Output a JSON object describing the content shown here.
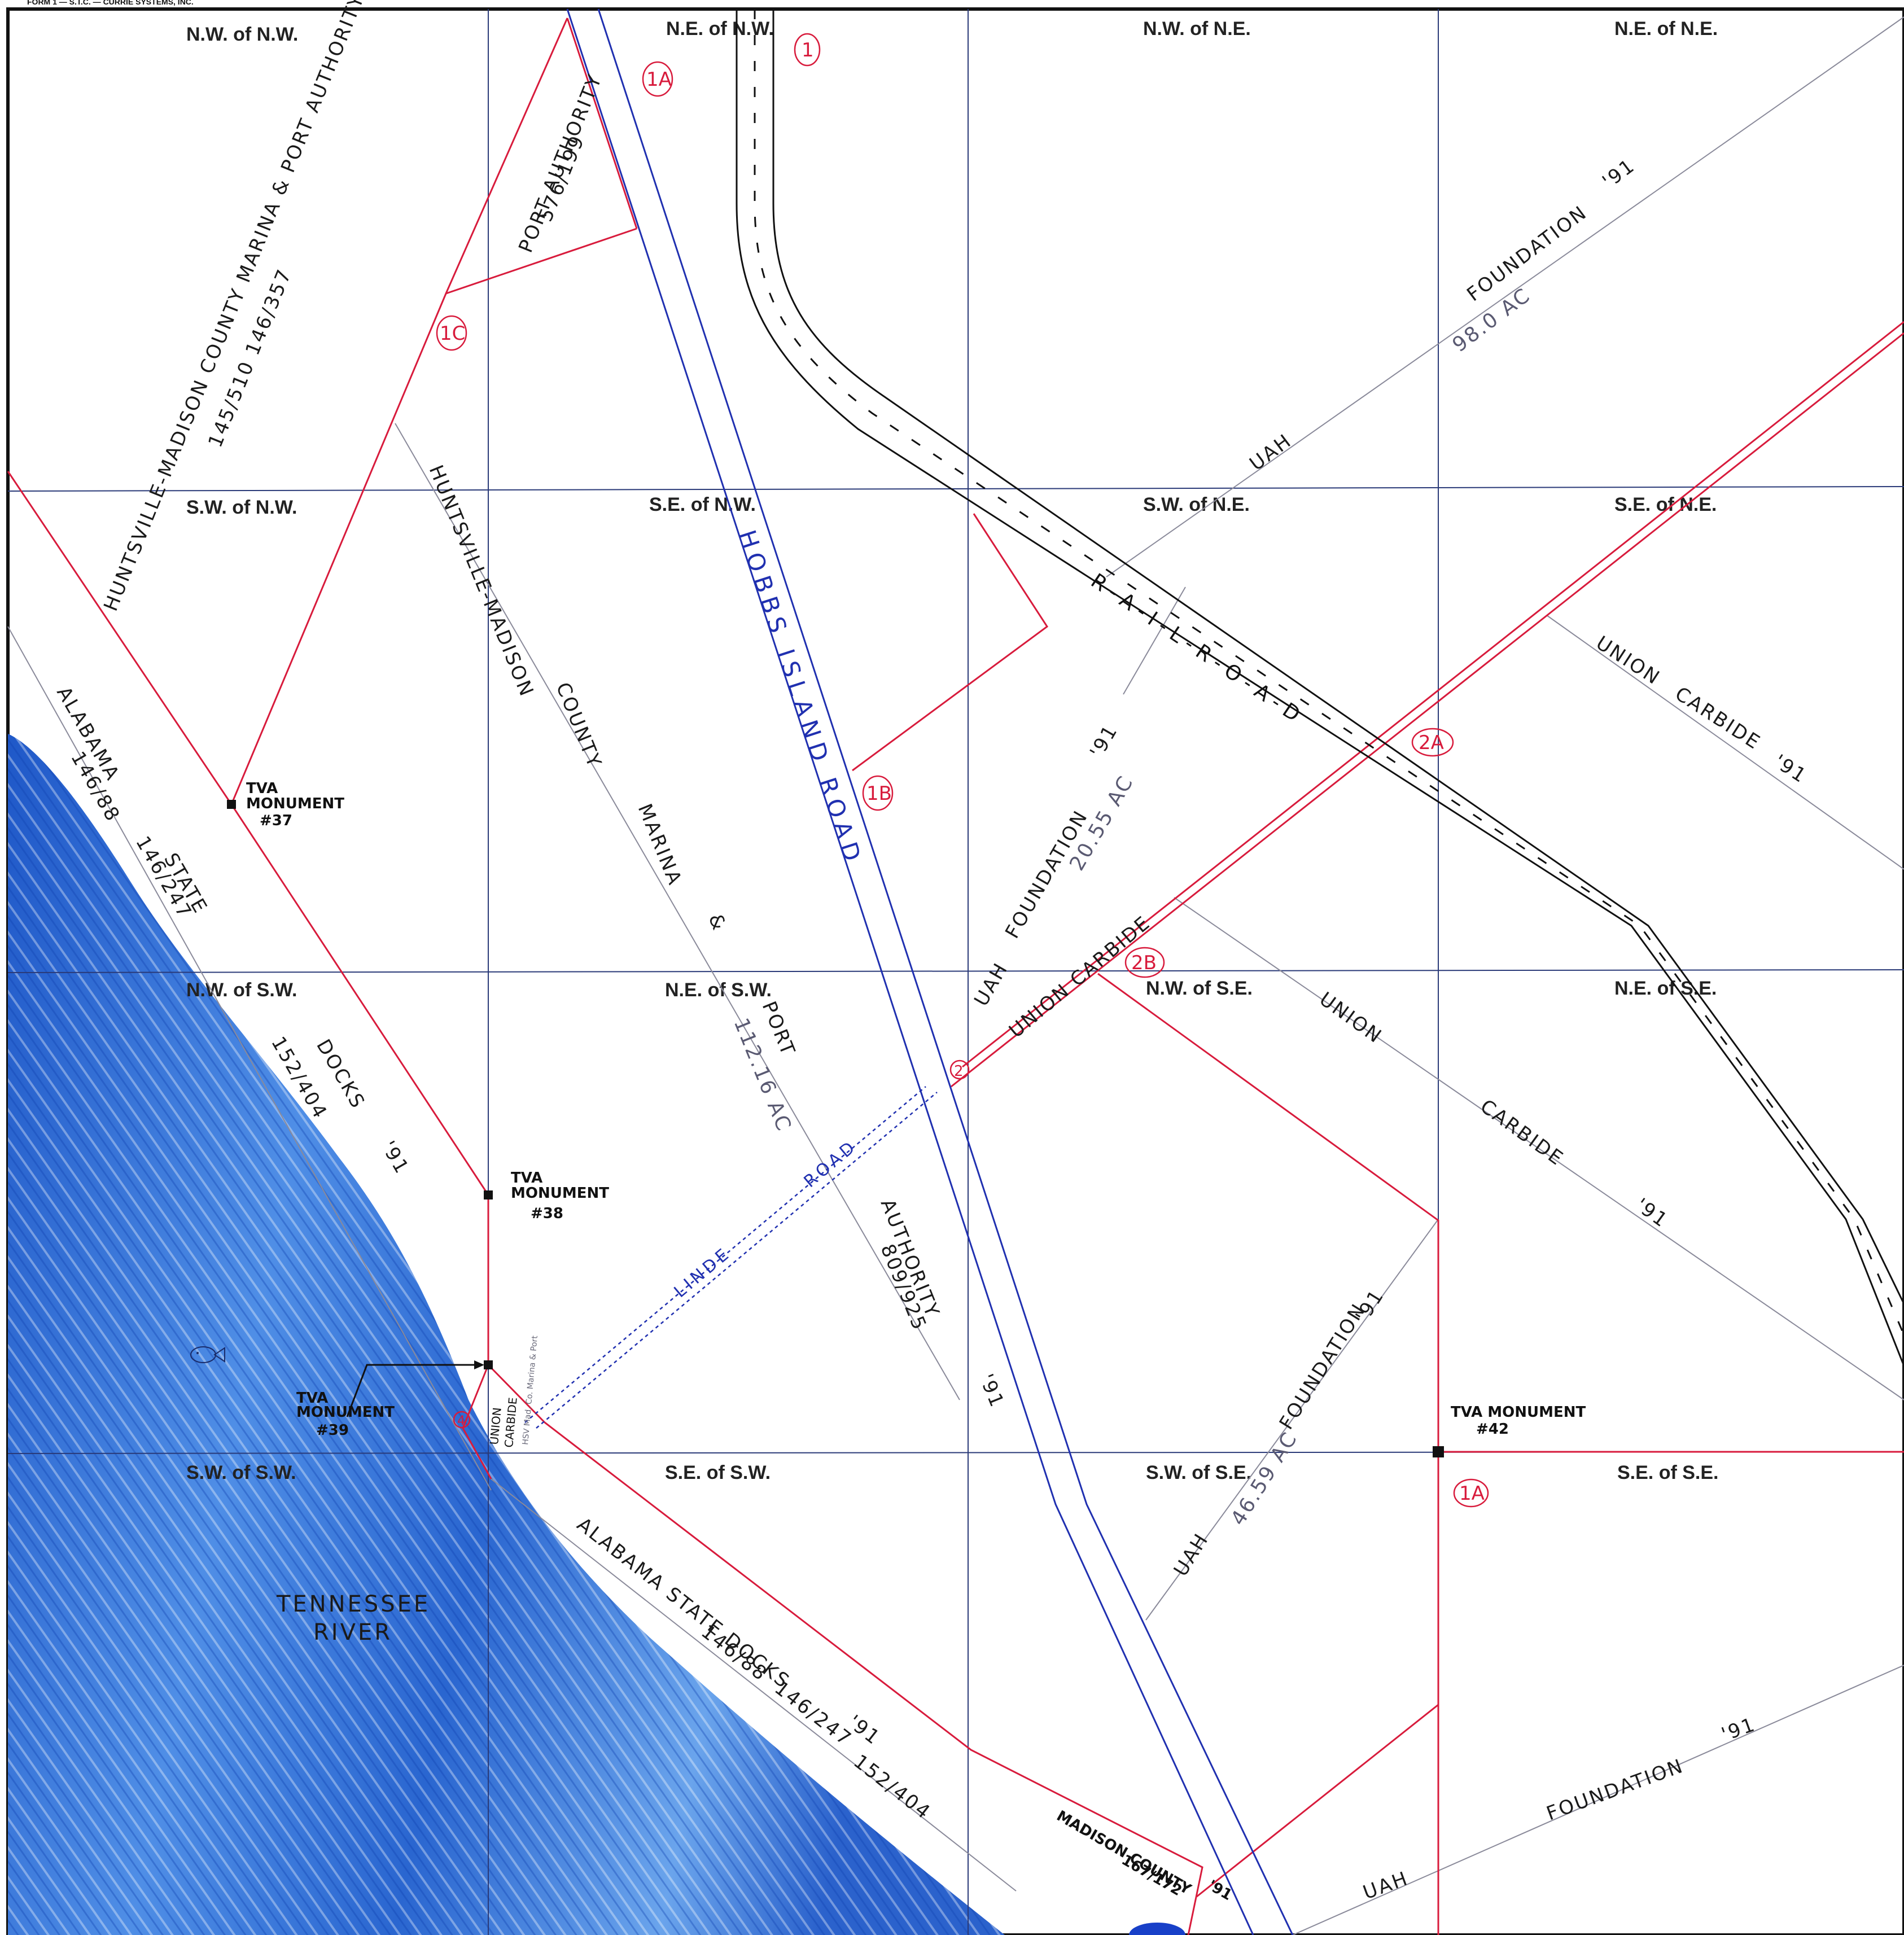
{
  "form_header": "FORM 1 — S.T.C. — CURRIE SYSTEMS, INC.",
  "quarter_sections": [
    "N.W. of N.W.",
    "N.E. of N.W.",
    "N.W. of N.E.",
    "N.E. of N.E.",
    "S.W. of N.W.",
    "S.E. of N.W.",
    "S.W. of N.E.",
    "S.E. of N.E.",
    "N.W. of S.W.",
    "N.E. of S.W.",
    "N.W. of S.E.",
    "N.E. of S.E.",
    "S.W. of S.W.",
    "S.E. of S.W.",
    "S.W. of S.E.",
    "S.E. of S.E."
  ],
  "roads": {
    "hobbs_island": "HOBBS ISLAND ROAD",
    "railroad": "R - A - I - L - R - O - A - D",
    "linde": "LINDE",
    "linde_road": "ROAD"
  },
  "water": {
    "river_line1": "TENNESSEE",
    "river_line2": "RIVER"
  },
  "parcel_labels": {
    "hmc_marina_top": "HUNTSVILLE-MADISON COUNTY MARINA & PORT AUTHORITY '91",
    "hmc_marina_top_refs": "145/510     146/357",
    "port_authority": "PORT AUTHORITY",
    "port_authority_ref": "576/199",
    "foundation_ne": "FOUNDATION",
    "foundation_ne_year": "'91",
    "foundation_ne_acres": "98.0 AC",
    "uah_ne": "UAH",
    "hmc_marina_mid1": "HUNTSVILLE-MADISON",
    "hmc_marina_mid2": "COUNTY",
    "hmc_marina_mid3": "MARINA",
    "hmc_marina_mid4": "&",
    "port_mid": "PORT",
    "port_mid_acres": "112.16 AC",
    "authority_mid": "AUTHORITY",
    "authority_mid_ref": "809/925",
    "authority_mid_year": "'91",
    "alabama_state": "ALABAMA",
    "alabama_state_ref1": "146/88",
    "state_word": "STATE",
    "alabama_state_ref2": "146/247",
    "docks_word": "DOCKS",
    "docks_ref": "152/404",
    "docks_year": "'91",
    "union_carbide_ne1": "UNION",
    "union_carbide_ne2": "CARBIDE",
    "union_carbide_ne_year": "'91",
    "foundation_mid": "FOUNDATION",
    "foundation_mid_year": "'91",
    "foundation_mid_acres": "20.55 AC",
    "uah_mid": "UAH",
    "union_carbide_strip": "UNION CARBIDE",
    "union_carbide_se1": "UNION",
    "union_carbide_se2": "CARBIDE",
    "union_carbide_se_year": "'91",
    "foundation_se": "FOUNDATION",
    "foundation_se_year": "'91",
    "uah_se": "UAH",
    "foundation_se_acres": "46.59 AC",
    "alabama_state_docks_bottom": "ALABAMA STATE DOCKS",
    "alabama_bottom_refs1": "146/88",
    "alabama_bottom_refs2": "146/247",
    "alabama_bottom_refs3": "152/404",
    "alabama_bottom_year": "'91",
    "madison_county": "MADISON COUNTY",
    "madison_county_ref": "167/172",
    "madison_county_year": "'91",
    "foundation_bottom": "FOUNDATION",
    "foundation_bottom_year": "'91",
    "uah_bottom": "UAH",
    "union_carbide_small1": "UNION",
    "union_carbide_small2": "CARBIDE",
    "tiny_note": "HSV Mad. Co. Marina & Port"
  },
  "monuments": {
    "m37": [
      "TVA",
      "MONUMENT",
      "#37"
    ],
    "m38": [
      "TVA",
      "MONUMENT",
      "#38"
    ],
    "m39": [
      "TVA",
      "MONUMENT",
      "#39"
    ],
    "m42": [
      "TVA MONUMENT",
      "#42"
    ]
  },
  "tract_markers": [
    "1",
    "1A",
    "1C",
    "1B",
    "2A",
    "2B",
    "2",
    "1A",
    "4"
  ],
  "colors": {
    "grid": "#2a3a78",
    "boundary_red": "#d81b3c",
    "road_blue": "#2030b0",
    "rail_black": "#111111",
    "river_blue": "#2f6fd6",
    "pencil": "#8a8a9a"
  }
}
